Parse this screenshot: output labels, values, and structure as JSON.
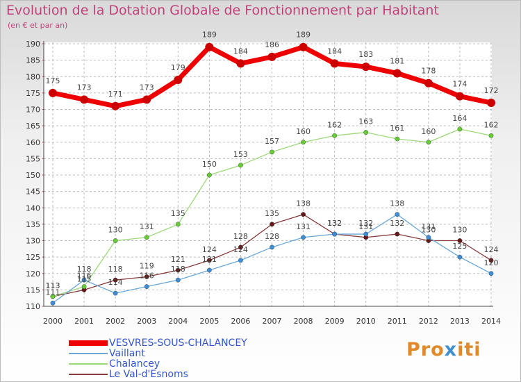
{
  "title": "Evolution de la Dotation Globale de Fonctionnement par Habitant",
  "subtitle": "(en € et par an)",
  "logo": {
    "part1": "Pro",
    "part2": "x",
    "part3": "iti"
  },
  "colors": {
    "title": "#c0427a",
    "axis": "#333333",
    "grid": "#bbbbbb",
    "legend_text": "#3355cc"
  },
  "chart_data": {
    "type": "line",
    "title": "Evolution de la Dotation Globale de Fonctionnement par Habitant",
    "subtitle": "(en € et par an)",
    "xlabel": "",
    "ylabel": "",
    "x": [
      "2000",
      "2001",
      "2002",
      "2003",
      "2004",
      "2005",
      "2006",
      "2007",
      "2008",
      "2009",
      "2010",
      "2011",
      "2012",
      "2013",
      "2014"
    ],
    "yticks": [
      110,
      115,
      120,
      125,
      130,
      135,
      140,
      145,
      150,
      155,
      160,
      165,
      170,
      175,
      180,
      185,
      190
    ],
    "ylim": [
      110,
      190
    ],
    "grid": true,
    "legend_position": "bottom-left",
    "series": [
      {
        "name": "VESVRES-SOUS-CHALANCEY",
        "color": "#ee0000",
        "width": 7,
        "marker_color": "#cc0000",
        "values": [
          175,
          173,
          171,
          173,
          179,
          189,
          184,
          186,
          189,
          184,
          183,
          181,
          178,
          174,
          172
        ],
        "labels": [
          "175",
          "173",
          "171",
          "173",
          "179",
          "189",
          "184",
          "186",
          "189",
          "184",
          "183",
          "181",
          "178",
          "174",
          "172"
        ]
      },
      {
        "name": "Vaillant",
        "color": "#6aa7d8",
        "width": 1.3,
        "marker_color": "#3d8ed6",
        "values": [
          111,
          118,
          114,
          116,
          118,
          121,
          124,
          128,
          131,
          132,
          132,
          138,
          131,
          125,
          120
        ],
        "labels": [
          "111",
          "118",
          "114",
          "116",
          "118",
          "121",
          "124",
          "128",
          "131",
          "132",
          "132",
          "138",
          "131",
          "125",
          "120"
        ]
      },
      {
        "name": "Chalancey",
        "color": "#9dd87a",
        "width": 1.3,
        "marker_color": "#66cc33",
        "values": [
          113,
          116,
          130,
          131,
          135,
          150,
          153,
          157,
          160,
          162,
          163,
          161,
          160,
          164,
          162
        ],
        "labels": [
          "113",
          "116",
          "130",
          "131",
          "135",
          "150",
          "153",
          "157",
          "160",
          "162",
          "163",
          "161",
          "160",
          "164",
          "162"
        ]
      },
      {
        "name": "Le Val-d'Esnoms",
        "color": "#8a3a3a",
        "width": 1.3,
        "marker_color": "#661818",
        "values": [
          113,
          115,
          118,
          119,
          121,
          124,
          128,
          135,
          138,
          132,
          131,
          132,
          130,
          130,
          124
        ],
        "labels": [
          "113",
          "115",
          "118",
          "119",
          "121",
          "124",
          "128",
          "135",
          "138",
          "132",
          "131",
          "132",
          "130",
          "130",
          "124"
        ]
      }
    ]
  }
}
